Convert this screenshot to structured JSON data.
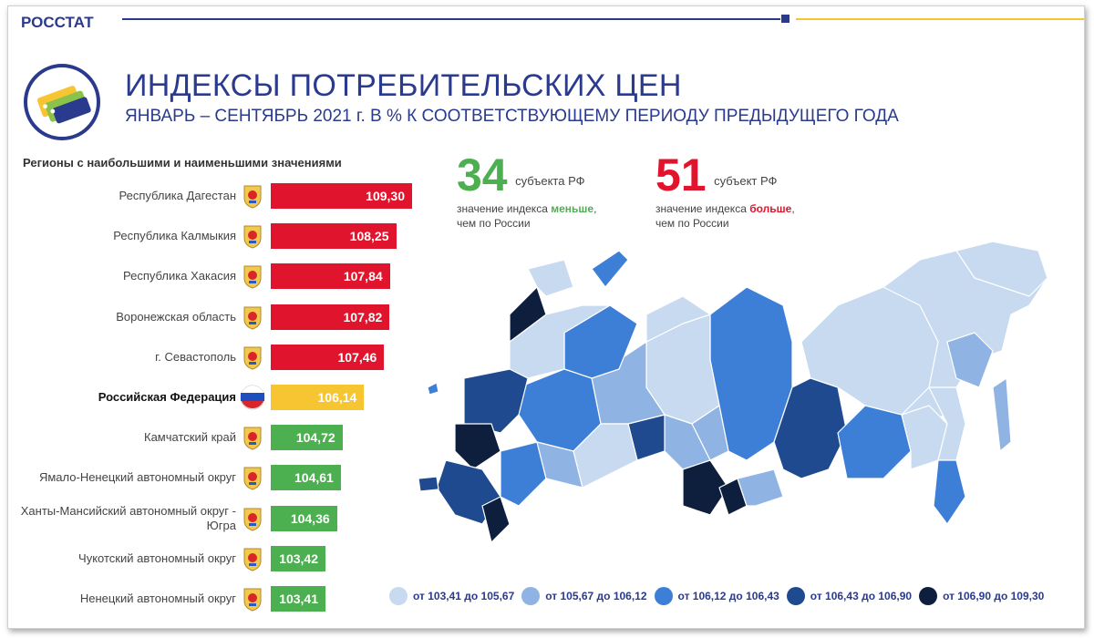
{
  "brand": "РОССТАТ",
  "title": "ИНДЕКСЫ ПОТРЕБИТЕЛЬСКИХ ЦЕН",
  "subtitle": "ЯНВАРЬ – СЕНТЯБРЬ 2021 г. В % К СООТВЕТСТВУЮЩЕМУ ПЕРИОДУ ПРЕДЫДУЩЕГО ГОДА",
  "colors": {
    "brand_blue": "#2a3a8c",
    "gold": "#f7c531",
    "high": "#e0142c",
    "russia": "#f7c531",
    "low": "#4caf50"
  },
  "chart_data": {
    "type": "bar",
    "title": "Регионы с наибольшими и наименьшими значениями",
    "categories": [
      "Республика Дагестан",
      "Республика Калмыкия",
      "Республика Хакасия",
      "Воронежская область",
      "г. Севастополь",
      "Российская Федерация",
      "Камчатский край",
      "Ямало-Ненецкий автономный округ",
      "Ханты-Мансийский автономный округ - Югра",
      "Чукотский автономный округ",
      "Ненецкий автономный округ"
    ],
    "values": [
      109.3,
      108.25,
      107.84,
      107.82,
      107.46,
      106.14,
      104.72,
      104.61,
      104.36,
      103.42,
      103.41
    ],
    "value_labels": [
      "109,30",
      "108,25",
      "107,84",
      "107,82",
      "107,46",
      "106,14",
      "104,72",
      "104,61",
      "104,36",
      "103,42",
      "103,41"
    ],
    "groups": [
      "high",
      "high",
      "high",
      "high",
      "high",
      "russia",
      "low",
      "low",
      "low",
      "low",
      "low"
    ],
    "xlim": [
      100,
      109.3
    ]
  },
  "summary": {
    "less": {
      "count": "34",
      "unit": "субъекта РФ",
      "desc_pre": "значение индекса ",
      "desc_hl": "меньше",
      "desc_post": ",",
      "desc_line2": "чем по России",
      "color": "#4caf50"
    },
    "more": {
      "count": "51",
      "unit": "субъект РФ",
      "desc_pre": "значение индекса ",
      "desc_hl": "больше",
      "desc_post": ",",
      "desc_line2": "чем по России",
      "color": "#e0142c"
    }
  },
  "legend": [
    {
      "label": "от 103,41 до 105,67",
      "color": "#c8daf0"
    },
    {
      "label": "от 105,67 до 106,12",
      "color": "#8fb3e2"
    },
    {
      "label": "от 106,12 до 106,43",
      "color": "#3d7fd6"
    },
    {
      "label": "от 106,43 до 106,90",
      "color": "#1f4a8f"
    },
    {
      "label": "от 106,90 до 109,30",
      "color": "#0e1f3d"
    }
  ]
}
